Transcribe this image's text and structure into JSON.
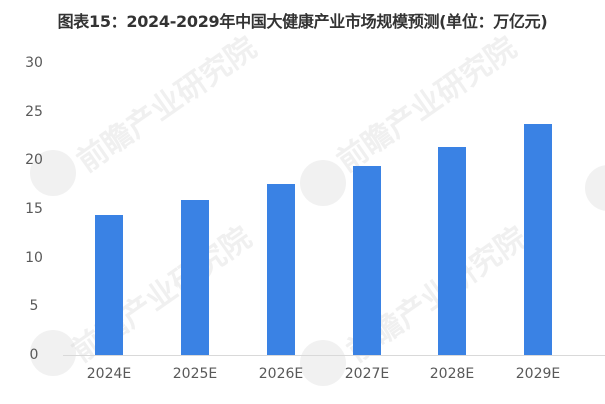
{
  "title": "图表15：2024-2029年中国大健康产业市场规模预测(单位：万亿元)",
  "watermark": "前瞻产业研究院",
  "colors": {
    "bar": "#3a82e4",
    "axis": "#d9d9d9",
    "tick_text": "#595959",
    "title": "#333333"
  },
  "y_ticks": [
    "30",
    "25",
    "20",
    "15",
    "10",
    "5",
    "0"
  ],
  "x_ticks": [
    "2024E",
    "2025E",
    "2026E",
    "2027E",
    "2028E",
    "2029E"
  ],
  "chart_data": {
    "type": "bar",
    "title": "图表15：2024-2029年中国大健康产业市场规模预测(单位：万亿元)",
    "categories": [
      "2024E",
      "2025E",
      "2026E",
      "2027E",
      "2028E",
      "2029E"
    ],
    "values": [
      14.4,
      15.9,
      17.6,
      19.4,
      21.4,
      23.7
    ],
    "xlabel": "",
    "ylabel": "万亿元",
    "ylim": [
      0,
      30
    ],
    "yticks": [
      0,
      5,
      10,
      15,
      20,
      25,
      30
    ],
    "grid": false,
    "legend": null,
    "series": [
      {
        "name": "中国大健康产业市场规模",
        "values": [
          14.4,
          15.9,
          17.6,
          19.4,
          21.4,
          23.7
        ]
      }
    ]
  }
}
